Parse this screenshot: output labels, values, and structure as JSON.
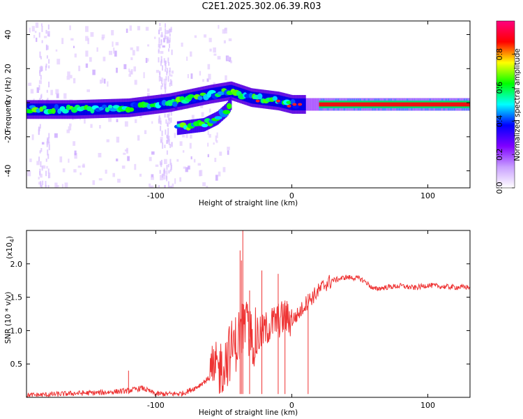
{
  "title": "C2E1.2025.302.06.39.R03",
  "chart_data": [
    {
      "type": "heatmap",
      "title": "C2E1.2025.302.06.39.R03",
      "xlabel": "Height of straight line (km)",
      "ylabel": "Frequency (Hz)",
      "xlim": [
        -195,
        131
      ],
      "ylim": [
        -50,
        48
      ],
      "xticks": [
        -100,
        0,
        100
      ],
      "xtick_labels": [
        "-100",
        "0",
        "100"
      ],
      "yticks": [
        40,
        20,
        0,
        -20,
        -40
      ],
      "ytick_labels": [
        "40",
        "20",
        "0",
        "-20",
        "-40"
      ],
      "colorbar": {
        "label": "Normalized spectral amplitude",
        "range": [
          0,
          1
        ],
        "ticks": [
          0.0,
          0.2,
          0.4,
          0.6,
          0.8
        ],
        "tick_labels": [
          "0.0",
          "0.2",
          "0.4",
          "0.6",
          "0.8"
        ],
        "colors": [
          "#ffffff",
          "#c9a0ff",
          "#7f00ff",
          "#0000ff",
          "#00ffff",
          "#00ff00",
          "#ffff00",
          "#ff0000",
          "#ff007f"
        ]
      },
      "main_trace": [
        {
          "x": -195,
          "y": -4
        },
        {
          "x": -160,
          "y": -4
        },
        {
          "x": -120,
          "y": -3
        },
        {
          "x": -90,
          "y": 0
        },
        {
          "x": -60,
          "y": 5
        },
        {
          "x": -45,
          "y": 7
        },
        {
          "x": -30,
          "y": 3
        },
        {
          "x": -10,
          "y": 1
        },
        {
          "x": 0,
          "y": -1
        },
        {
          "x": 20,
          "y": -1
        },
        {
          "x": 131,
          "y": -1
        }
      ],
      "secondary_trace": [
        {
          "x": -85,
          "y": -15
        },
        {
          "x": -65,
          "y": -13
        },
        {
          "x": -55,
          "y": -9
        },
        {
          "x": -48,
          "y": -4
        },
        {
          "x": -45,
          "y": 0
        }
      ],
      "peak_band": {
        "x_start": 20,
        "x_end": 131,
        "y": -1
      }
    },
    {
      "type": "line",
      "xlabel": "Height of straight line (km)",
      "ylabel": "SNR (10 * v/v)",
      "y_scale_note": "(x10",
      "y_scale_exponent": "4",
      "xlim": [
        -195,
        131
      ],
      "ylim": [
        0,
        2.5
      ],
      "xticks": [
        -100,
        0,
        100
      ],
      "xtick_labels": [
        "-100",
        "0",
        "100"
      ],
      "yticks": [
        0.5,
        1.0,
        1.5,
        2.0
      ],
      "ytick_labels": [
        "0.5",
        "1.0",
        "1.5",
        "2.0"
      ],
      "color": "#ee3333",
      "series": [
        {
          "name": "SNR",
          "x": [
            -195,
            -180,
            -160,
            -140,
            -120,
            -110,
            -100,
            -90,
            -80,
            -70,
            -60,
            -50,
            -45,
            -40,
            -35,
            -30,
            -25,
            -20,
            -15,
            -10,
            -5,
            0,
            5,
            10,
            15,
            20,
            25,
            30,
            40,
            50,
            55,
            60,
            70,
            80,
            90,
            100,
            110,
            120,
            131
          ],
          "y": [
            0.03,
            0.04,
            0.06,
            0.07,
            0.1,
            0.14,
            0.05,
            0.05,
            0.06,
            0.15,
            0.3,
            0.5,
            0.7,
            0.85,
            1.1,
            0.9,
            0.9,
            1.0,
            1.1,
            1.15,
            1.2,
            1.15,
            1.25,
            1.4,
            1.5,
            1.6,
            1.7,
            1.75,
            1.8,
            1.78,
            1.72,
            1.62,
            1.65,
            1.67,
            1.64,
            1.68,
            1.66,
            1.65,
            1.65
          ]
        }
      ],
      "spikes": [
        {
          "x": -36,
          "y": 2.5
        },
        {
          "x": -37,
          "y": 2.05
        },
        {
          "x": -38,
          "y": 2.2
        },
        {
          "x": -22,
          "y": 1.9
        },
        {
          "x": -10,
          "y": 1.85
        },
        {
          "x": -31,
          "y": 1.6
        },
        {
          "x": -5,
          "y": 1.45
        },
        {
          "x": 12,
          "y": 1.55
        },
        {
          "x": -120,
          "y": 0.4
        }
      ]
    }
  ]
}
